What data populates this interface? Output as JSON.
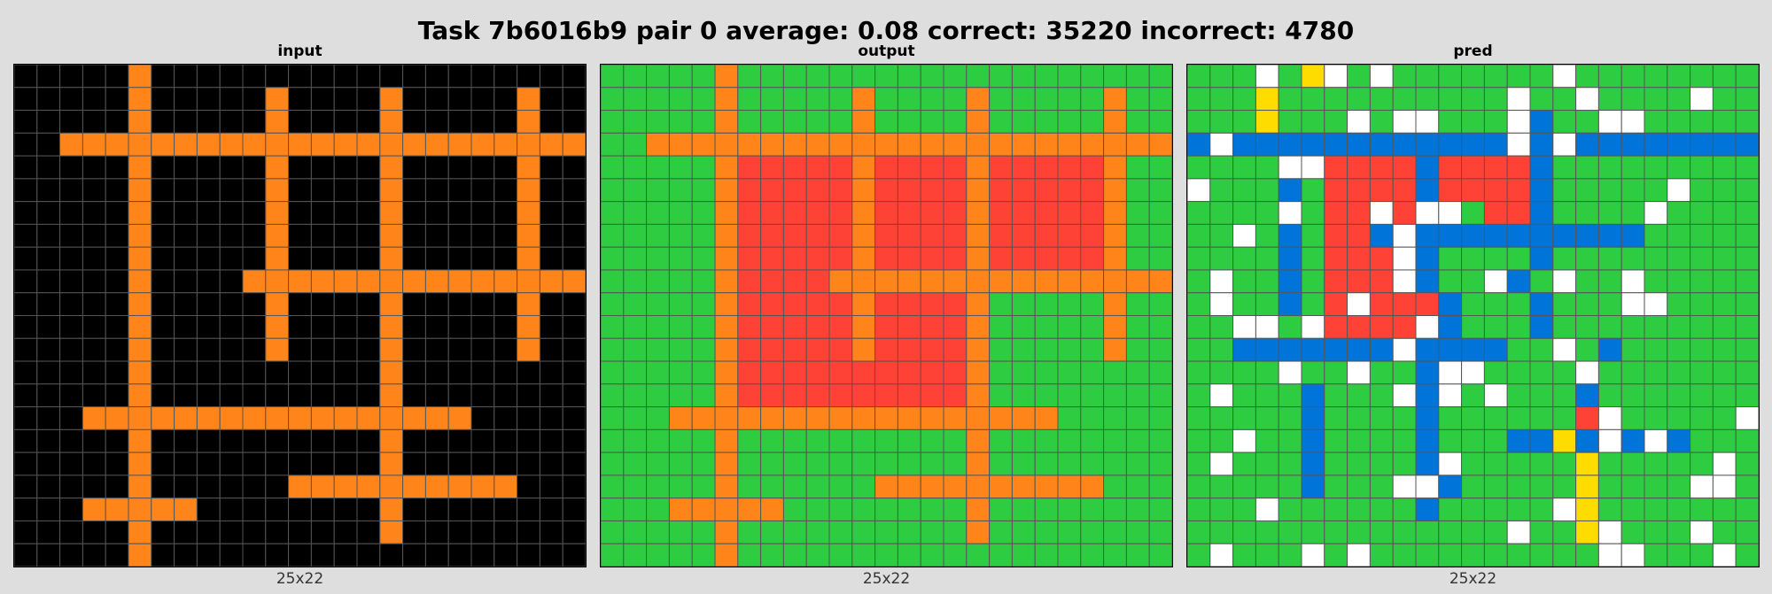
{
  "title": "Task 7b6016b9 pair 0 average: 0.08 correct: 35220 incorrect: 4780",
  "palette": {
    "0": "#000000",
    "1": "#0074D9",
    "2": "#FF4136",
    "3": "#2ECC40",
    "4": "#FFDC00",
    "5": "#AAAAAA",
    "6": "#F012BE",
    "7": "#FF851B",
    "8": "#FFFFFF",
    "9": "#870C25"
  },
  "grid_line_color": "#555555",
  "panels": [
    {
      "key": "input",
      "label": "input",
      "size_label": "25x22",
      "grid": [
        "0000070000000000000000000",
        "0000070000070000700000700",
        "0000070000070000700000700",
        "0077777777777777777777777",
        "0000070000070000700000700",
        "0000070000070000700000700",
        "0000070000070000700000700",
        "0000070000070000700000700",
        "0000070000070000700000700",
        "0000070000777777777777777",
        "0000070000070000700000700",
        "0000070000070000700000700",
        "0000070000070000700000700",
        "0000070000000000700000000",
        "0000070000000000700000000",
        "0007777777777777777700000",
        "0000070000000000700000000",
        "0000070000000000700000000",
        "0000070000007777777777000",
        "0007777700000000700000000",
        "0000070000000000700000000",
        "0000070000000000000000000"
      ]
    },
    {
      "key": "output",
      "label": "output",
      "size_label": "25x22",
      "grid": [
        "3333373333333333333333333",
        "3333373333373333733333733",
        "3333373333373333733333733",
        "3377777777777777777777777",
        "3333372222272222722222733",
        "3333372222272222722222733",
        "3333372222272222722222733",
        "3333372222272222722222733",
        "3333372222272222722222733",
        "3333372222777777777777777",
        "3333372222272222733333733",
        "3333372222272222733333733",
        "3333372222272222733333733",
        "3333372222222222733333333",
        "3333372222222222733333333",
        "3337777777777777777733333",
        "3333373333333333733333333",
        "3333373333333333733333333",
        "3333373333337777777777333",
        "3337777733333333733333333",
        "3333373333333333733333333",
        "3333373333333333333333333"
      ]
    },
    {
      "key": "pred",
      "label": "pred",
      "size_label": "25x22",
      "grid": [
        "3338348383333333833333333",
        "3334333333333383383333833",
        "3334333838833381338833333",
        "1811111111111181811111111",
        "3333882222122221333333333",
        "8333132222122221333338333",
        "3333832282883221333383333",
        "3383132218111111111133333",
        "3333132228133331333333333",
        "3833132228133813833833333",
        "3833132822213331333883333",
        "3388382222813331333333333",
        "3311111118111133831333333",
        "3333833833188333383333333",
        "3833313338183833313333333",
        "3333313333133333328333338",
        "3383313333133311418181333",
        "3833313333183333343333383",
        "3333313338813333343333883",
        "3338333333133333843333333",
        "3333333333333383348333833",
        "3833383833333333338833383"
      ]
    }
  ]
}
